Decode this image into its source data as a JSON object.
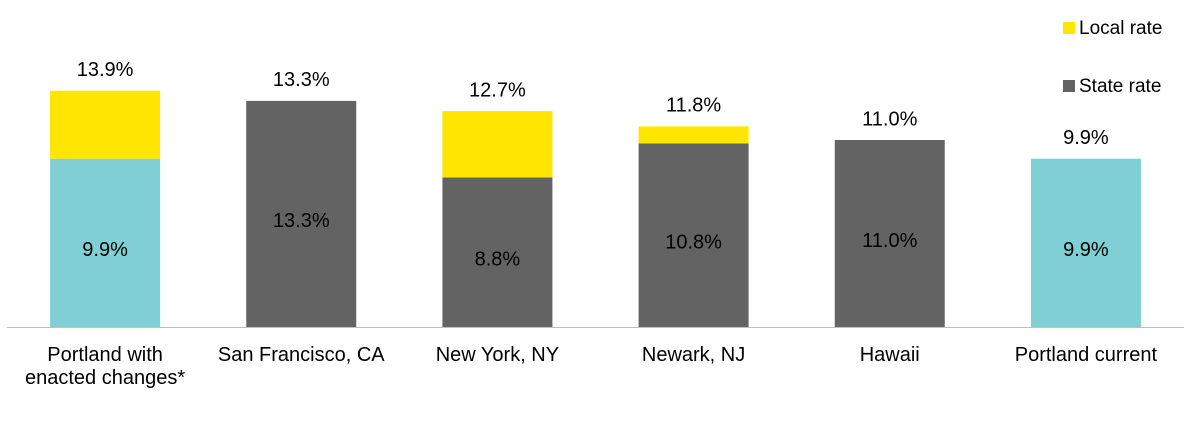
{
  "chart_data": {
    "type": "stacked_bar",
    "categories": [
      "Portland with enacted changes*",
      "San Francisco, CA",
      "New York, NY",
      "Newark, NJ",
      "Hawaii",
      "Portland current"
    ],
    "series": [
      {
        "name": "State rate",
        "color": "#636363",
        "point_colors": [
          "#7fcfd4",
          "#636363",
          "#636363",
          "#636363",
          "#636363",
          "#7fcfd4"
        ],
        "values": [
          9.9,
          13.3,
          8.8,
          10.8,
          11.0,
          9.9
        ],
        "value_labels": [
          "9.9%",
          "13.3%",
          "8.8%",
          "10.8%",
          "11.0%",
          "9.9%"
        ]
      },
      {
        "name": "Local rate",
        "color": "#ffe600",
        "values": [
          4.0,
          0,
          3.9,
          1.0,
          0,
          0
        ]
      }
    ],
    "totals": [
      13.9,
      13.3,
      12.7,
      11.8,
      11.0,
      9.9
    ],
    "total_labels": [
      "13.9%",
      "13.3%",
      "12.7%",
      "11.8%",
      "11.0%",
      "9.9%"
    ],
    "ylim": [
      0,
      14
    ],
    "legend": "top-right"
  }
}
